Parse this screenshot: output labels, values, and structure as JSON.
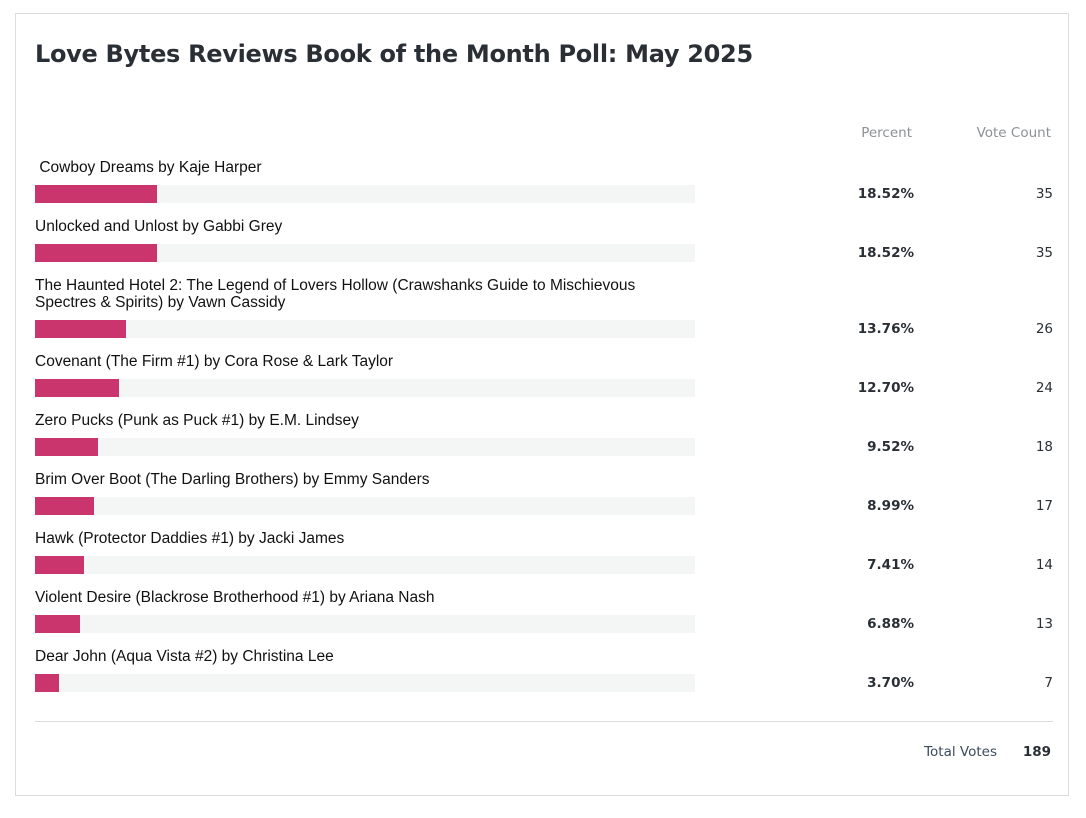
{
  "title": "Love Bytes Reviews Book of the Month Poll: May 2025",
  "columns": {
    "percent": "Percent",
    "count": "Vote Count"
  },
  "accent_color": "#c9356c",
  "results": [
    {
      "label": " Cowboy Dreams by Kaje Harper",
      "percent": 18.52,
      "percent_text": "18.52%",
      "count": "35"
    },
    {
      "label": "Unlocked and Unlost by Gabbi Grey",
      "percent": 18.52,
      "percent_text": "18.52%",
      "count": "35"
    },
    {
      "label": "The Haunted Hotel 2: The Legend of Lovers Hollow (Crawshanks Guide to Mischievous Spectres & Spirits) by Vawn Cassidy",
      "percent": 13.76,
      "percent_text": "13.76%",
      "count": "26"
    },
    {
      "label": "Covenant (The Firm #1) by Cora Rose & Lark Taylor",
      "percent": 12.7,
      "percent_text": "12.70%",
      "count": "24"
    },
    {
      "label": "Zero Pucks (Punk as Puck #1) by E.M. Lindsey",
      "percent": 9.52,
      "percent_text": "9.52%",
      "count": "18"
    },
    {
      "label": "Brim Over Boot (The Darling Brothers) by Emmy Sanders",
      "percent": 8.99,
      "percent_text": "8.99%",
      "count": "17"
    },
    {
      "label": "Hawk (Protector Daddies #1) by Jacki James",
      "percent": 7.41,
      "percent_text": "7.41%",
      "count": "14"
    },
    {
      "label": "Violent Desire (Blackrose Brotherhood #1) by Ariana Nash",
      "percent": 6.88,
      "percent_text": "6.88%",
      "count": "13"
    },
    {
      "label": "Dear John (Aqua Vista #2) by Christina Lee",
      "percent": 3.7,
      "percent_text": "3.70%",
      "count": "7"
    }
  ],
  "total": {
    "label": "Total Votes",
    "value": "189"
  }
}
